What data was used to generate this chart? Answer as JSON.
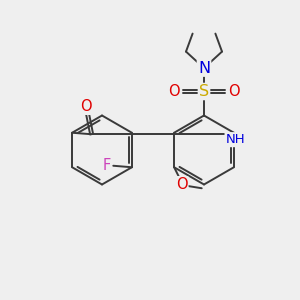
{
  "bg_color": "#efefef",
  "bond_color": "#3a3a3a",
  "bond_lw": 1.4,
  "atom_colors": {
    "O": "#e00000",
    "N": "#0000dd",
    "S": "#ccaa00",
    "F": "#cc44bb",
    "C": "#3a3a3a"
  },
  "font_size": 9.5,
  "figsize": [
    3.0,
    3.0
  ],
  "dpi": 100,
  "xlim": [
    -1.0,
    9.0
  ],
  "ylim": [
    -0.5,
    9.5
  ]
}
